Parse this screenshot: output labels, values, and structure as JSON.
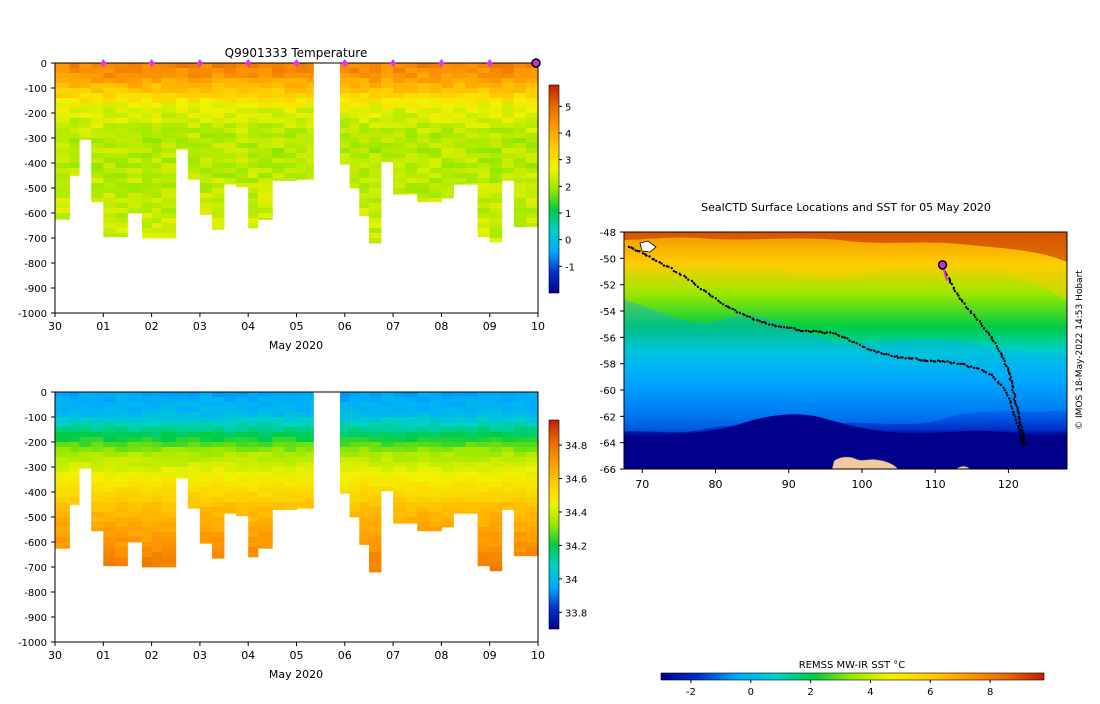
{
  "chart_data": [
    {
      "type": "heatmap",
      "panel": "temperature_profiles",
      "title": "Q9901333  Temperature",
      "xlabel": "May 2020",
      "ylabel": "",
      "x_ticks": [
        {
          "label": "30",
          "day": 0
        },
        {
          "label": "01",
          "day": 1
        },
        {
          "label": "02",
          "day": 2
        },
        {
          "label": "03",
          "day": 3
        },
        {
          "label": "04",
          "day": 4
        },
        {
          "label": "05",
          "day": 5
        },
        {
          "label": "06",
          "day": 6
        },
        {
          "label": "07",
          "day": 7
        },
        {
          "label": "08",
          "day": 8
        },
        {
          "label": "09",
          "day": 9
        },
        {
          "label": "10",
          "day": 10
        }
      ],
      "xlim": [
        0,
        10
      ],
      "ylim": [
        -1000,
        0
      ],
      "y_ticks": [
        "0",
        "-100",
        "-200",
        "-300",
        "-400",
        "-500",
        "-600",
        "-700",
        "-800",
        "-900",
        "-1000"
      ],
      "data_gap_days": [
        5.35,
        5.9
      ],
      "surface_markers_days": [
        1,
        2,
        3,
        4,
        5,
        6,
        7,
        8,
        9
      ],
      "latest_profile_day": 10,
      "cast_start_days": [
        0,
        0.3,
        0.5,
        0.75,
        1,
        1.25,
        1.5,
        1.8,
        2,
        2.2,
        2.5,
        2.75,
        3,
        3.25,
        3.5,
        3.75,
        4,
        4.2,
        4.5,
        4.75,
        5,
        5.2,
        5.35,
        5.9,
        6.1,
        6.3,
        6.5,
        6.75,
        7,
        7.25,
        7.5,
        7.75,
        8,
        8.25,
        8.5,
        8.75,
        9,
        9.25,
        9.5,
        9.75,
        10
      ],
      "cast_max_depth": [
        625,
        450,
        305,
        555,
        695,
        695,
        600,
        700,
        700,
        700,
        345,
        465,
        605,
        665,
        485,
        495,
        660,
        625,
        470,
        470,
        465,
        465,
        null,
        405,
        500,
        610,
        720,
        395,
        525,
        525,
        555,
        555,
        540,
        485,
        485,
        695,
        715,
        470,
        655,
        655
      ],
      "colorbar": {
        "min": -2,
        "max": 5.8,
        "ticks": [
          "5",
          "4",
          "3",
          "2",
          "1",
          "0",
          "-1"
        ],
        "colors": [
          "#00008b",
          "#0033cc",
          "#00aaff",
          "#00d0c8",
          "#00cc44",
          "#9be800",
          "#f2f200",
          "#ffcc00",
          "#ff9900",
          "#e86a00",
          "#c02000"
        ]
      }
    },
    {
      "type": "heatmap",
      "panel": "salinity_profiles",
      "title": "",
      "xlabel": "May 2020",
      "ylabel": "",
      "xlim": [
        0,
        10
      ],
      "ylim": [
        -1000,
        0
      ],
      "y_ticks": [
        "0",
        "-100",
        "-200",
        "-300",
        "-400",
        "-500",
        "-600",
        "-700",
        "-800",
        "-900",
        "-1000"
      ],
      "x_ticks": [
        "30",
        "01",
        "02",
        "03",
        "04",
        "05",
        "06",
        "07",
        "08",
        "09",
        "10"
      ],
      "colorbar": {
        "min": 33.7,
        "max": 34.95,
        "ticks": [
          "34.8",
          "34.6",
          "34.4",
          "34.2",
          "34",
          "33.8"
        ],
        "colors": [
          "#00008b",
          "#0033cc",
          "#00aaff",
          "#00d0c8",
          "#00cc44",
          "#9be800",
          "#f2f200",
          "#ffcc00",
          "#ff9900",
          "#e86a00",
          "#c02000"
        ]
      }
    },
    {
      "type": "scatter",
      "panel": "map",
      "title": "SealCTD Surface Locations and SST for 05 May 2020",
      "xlabel": "",
      "ylabel": "",
      "xlim": [
        67.5,
        128
      ],
      "ylim": [
        -66,
        -48
      ],
      "x_ticks": [
        "70",
        "80",
        "90",
        "100",
        "110",
        "120"
      ],
      "y_ticks": [
        "-48",
        "-50",
        "-52",
        "-54",
        "-56",
        "-58",
        "-60",
        "-62",
        "-64",
        "-66"
      ],
      "side_label": "© IMOS 18-May-2022 14:53 Hobart",
      "track_west": [
        [
          68.3,
          -49.1
        ],
        [
          70,
          -49.6
        ],
        [
          72,
          -50.2
        ],
        [
          74,
          -50.8
        ],
        [
          76,
          -51.5
        ],
        [
          78,
          -52.3
        ],
        [
          80,
          -53.1
        ],
        [
          82,
          -53.8
        ],
        [
          84,
          -54.3
        ],
        [
          86,
          -54.8
        ],
        [
          88,
          -55.1
        ],
        [
          90,
          -55.3
        ],
        [
          92,
          -55.5
        ],
        [
          94,
          -55.6
        ],
        [
          96,
          -55.7
        ],
        [
          98,
          -56.1
        ],
        [
          100,
          -56.7
        ],
        [
          102,
          -57.1
        ],
        [
          104,
          -57.4
        ],
        [
          106,
          -57.6
        ],
        [
          108,
          -57.7
        ],
        [
          110,
          -57.8
        ],
        [
          112,
          -57.9
        ],
        [
          114,
          -58.1
        ],
        [
          116,
          -58.4
        ],
        [
          118,
          -59
        ],
        [
          119.5,
          -60
        ],
        [
          120.5,
          -61.2
        ],
        [
          121.2,
          -62.5
        ],
        [
          121.7,
          -63.6
        ],
        [
          122,
          -64.3
        ]
      ],
      "track_east": [
        [
          111,
          -50.5
        ],
        [
          111.8,
          -51.5
        ],
        [
          112.8,
          -52.5
        ],
        [
          114,
          -53.5
        ],
        [
          115.5,
          -54.5
        ],
        [
          117,
          -55.5
        ],
        [
          118.2,
          -56.5
        ],
        [
          119.2,
          -57.5
        ],
        [
          120,
          -58.5
        ],
        [
          120.5,
          -59.5
        ],
        [
          120.8,
          -60.5
        ],
        [
          121.2,
          -61.5
        ],
        [
          121.6,
          -62.5
        ],
        [
          122,
          -63.5
        ],
        [
          122.3,
          -64.2
        ]
      ],
      "current_location": [
        111,
        -50.5
      ],
      "colorbar": {
        "label": "REMSS MW-IR SST °C",
        "min": -3,
        "max": 9.8,
        "ticks": [
          "-2",
          "0",
          "2",
          "4",
          "6",
          "8"
        ],
        "colors": [
          "#00008b",
          "#0033cc",
          "#00aaff",
          "#00d0c8",
          "#00cc44",
          "#9be800",
          "#f2f200",
          "#ffcc00",
          "#ff9900",
          "#e86a00",
          "#c02000"
        ]
      }
    }
  ]
}
